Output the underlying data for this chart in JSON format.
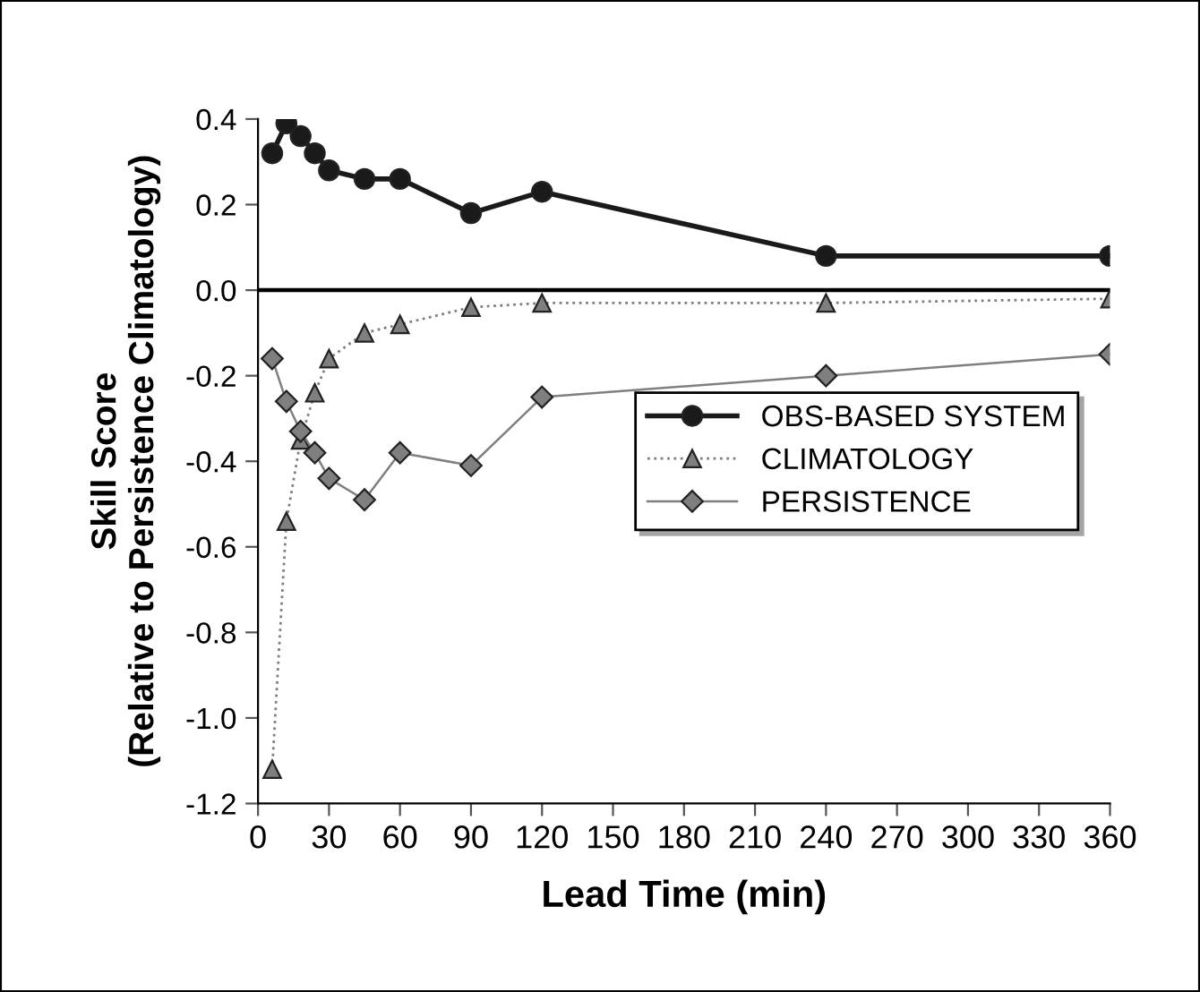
{
  "chart_data": {
    "type": "line",
    "xlabel": "Lead Time (min)",
    "ylabel": "Skill Score\n(Relative to Persistence Climatology)",
    "x": [
      6,
      12,
      18,
      24,
      30,
      45,
      60,
      90,
      120,
      240,
      360
    ],
    "xlim": [
      0,
      360
    ],
    "xticks": [
      0,
      30,
      60,
      90,
      120,
      150,
      180,
      210,
      240,
      270,
      300,
      330,
      360
    ],
    "ylim": [
      -1.2,
      0.4
    ],
    "yticks": [
      {
        "value": -1.2,
        "label": "-1.2"
      },
      {
        "value": -1.0,
        "label": "-1.0"
      },
      {
        "value": -0.8,
        "label": "-0.8"
      },
      {
        "value": -0.6,
        "label": "-0.6"
      },
      {
        "value": -0.4,
        "label": "-0.4"
      },
      {
        "value": -0.2,
        "label": "-0.2"
      },
      {
        "value": 0,
        "label": "0.0"
      },
      {
        "value": 0.2,
        "label": "0.2"
      },
      {
        "value": 0.4,
        "label": "0.4"
      }
    ],
    "grid": false,
    "legend": "right",
    "ref_lines": [
      {
        "axis": "y",
        "value": 0,
        "color": "#000000",
        "line_style": "solid"
      }
    ],
    "series": [
      {
        "name": "OBS-BASED SYSTEM",
        "color": "#1a1a1a",
        "marker": "circle",
        "line_style": "solid",
        "values": [
          0.32,
          0.39,
          0.36,
          0.32,
          0.28,
          0.26,
          0.26,
          0.18,
          0.23,
          0.08,
          0.08
        ]
      },
      {
        "name": "CLIMATOLOGY",
        "color": "#7f7f7f",
        "marker": "triangle",
        "line_style": "dotted",
        "values": [
          -1.12,
          -0.54,
          -0.35,
          -0.24,
          -0.16,
          -0.1,
          -0.08,
          -0.04,
          -0.03,
          -0.03,
          -0.02
        ]
      },
      {
        "name": "PERSISTENCE",
        "color": "#7f7f7f",
        "marker": "diamond",
        "line_style": "solid",
        "values": [
          -0.16,
          -0.26,
          -0.33,
          -0.38,
          -0.44,
          -0.49,
          -0.38,
          -0.41,
          -0.25,
          -0.2,
          -0.15
        ]
      }
    ]
  }
}
